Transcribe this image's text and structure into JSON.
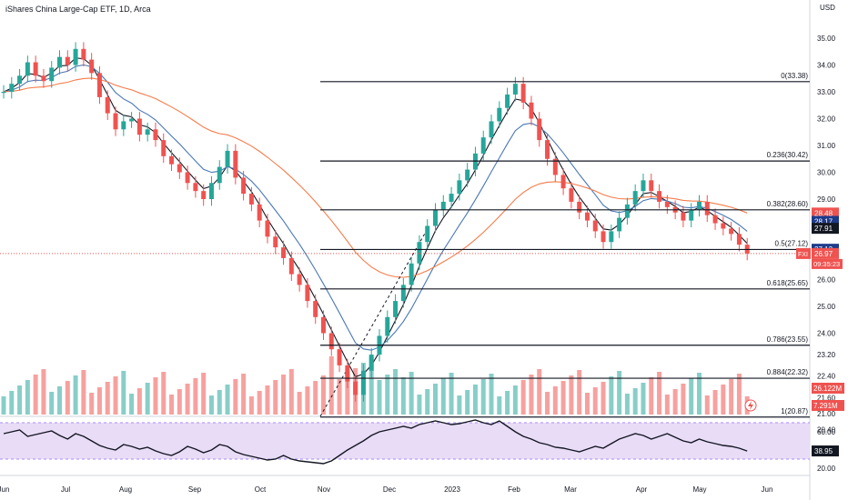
{
  "header": {
    "title": "iShares China Large-Cap ETF, 1D, Arca",
    "currency": "USD"
  },
  "colors": {
    "up": "#26a69a",
    "down": "#ef5350",
    "ema_fast": "#131722",
    "ema_mid": "#4a78b5",
    "ema_slow": "#f57c4a",
    "rsi": "#131722",
    "rsi_band": "#e9dcf7"
  },
  "chart_data": {
    "type": "candlestick",
    "symbol": "FXI",
    "x_ticks": [
      "Jun",
      "Jul",
      "Aug",
      "Sep",
      "Oct",
      "Nov",
      "Dec",
      "2023",
      "Feb",
      "Mar",
      "Apr",
      "May",
      "Jun"
    ],
    "y_ticks": [
      "35.00",
      "34.00",
      "33.00",
      "32.00",
      "31.00",
      "30.00",
      "29.00",
      "28.00",
      "27.00",
      "26.00",
      "25.00",
      "24.00",
      "23.20",
      "22.40",
      "21.60",
      "21.00",
      "20.40"
    ],
    "rsi_ticks": [
      "60.00",
      "40.00",
      "20.00"
    ],
    "fib_levels": [
      {
        "label": "0(33.38)",
        "value": 33.38
      },
      {
        "label": "0.236(30.42)",
        "value": 30.42
      },
      {
        "label": "0.382(28.60)",
        "value": 28.6
      },
      {
        "label": "0.5(27.12)",
        "value": 27.12
      },
      {
        "label": "0.618(25.65)",
        "value": 25.65
      },
      {
        "label": "0.786(23.55)",
        "value": 23.55
      },
      {
        "label": "0.884(22.32)",
        "value": 22.32
      },
      {
        "label": "1(20.87)",
        "value": 20.87
      }
    ],
    "price_tags": [
      {
        "text": "28.48",
        "value": 28.48,
        "color": "#ef5350"
      },
      {
        "text": "28.17",
        "value": 28.17,
        "color": "#1e3a8a"
      },
      {
        "text": "27.91",
        "value": 27.91,
        "color": "#131722"
      },
      {
        "text": "27.13",
        "value": 27.13,
        "color": "#1e3a8a"
      },
      {
        "text": "26.97",
        "value": 26.97,
        "color": "#ef5350"
      }
    ],
    "last_symbol": "FXI",
    "countdown": "09:35:23",
    "volume_tags": [
      {
        "text": "26.122M",
        "color": "#ef5350"
      },
      {
        "text": "7.291M",
        "color": "#ef5350"
      }
    ],
    "rsi_value": "38.95",
    "close_series": [
      33.0,
      33.3,
      33.6,
      34.1,
      33.6,
      33.4,
      33.9,
      34.3,
      34.0,
      34.6,
      34.2,
      33.7,
      32.8,
      32.2,
      31.6,
      31.9,
      32.0,
      31.4,
      31.6,
      31.2,
      30.6,
      30.3,
      30.0,
      29.6,
      29.3,
      29.0,
      29.6,
      30.2,
      30.8,
      29.8,
      29.2,
      28.8,
      28.2,
      27.6,
      27.2,
      26.8,
      26.2,
      25.8,
      25.2,
      24.6,
      24.0,
      23.4,
      22.8,
      22.2,
      21.7,
      22.6,
      23.2,
      23.9,
      24.6,
      25.2,
      25.8,
      26.6,
      27.4,
      28.0,
      28.6,
      28.9,
      29.2,
      29.7,
      30.1,
      30.7,
      31.3,
      31.9,
      32.4,
      32.9,
      33.3,
      32.6,
      32.0,
      31.2,
      30.5,
      29.9,
      29.4,
      28.9,
      28.5,
      28.2,
      27.8,
      27.4,
      27.8,
      28.3,
      28.8,
      29.3,
      29.7,
      29.3,
      28.9,
      28.7,
      28.5,
      28.2,
      28.6,
      28.9,
      28.4,
      28.1,
      27.9,
      27.7,
      27.3,
      26.97
    ],
    "rsi_series": [
      58,
      60,
      62,
      55,
      57,
      59,
      61,
      56,
      52,
      58,
      55,
      50,
      45,
      42,
      40,
      46,
      44,
      41,
      43,
      39,
      36,
      34,
      38,
      44,
      41,
      37,
      40,
      46,
      44,
      38,
      35,
      33,
      31,
      29,
      30,
      34,
      30,
      28,
      27,
      26,
      25,
      28,
      34,
      40,
      45,
      50,
      56,
      60,
      62,
      64,
      66,
      64,
      68,
      70,
      72,
      70,
      68,
      69,
      71,
      73,
      70,
      68,
      72,
      66,
      60,
      55,
      52,
      48,
      46,
      43,
      42,
      40,
      38,
      41,
      44,
      42,
      47,
      52,
      55,
      58,
      56,
      52,
      55,
      58,
      54,
      50,
      48,
      52,
      49,
      47,
      45,
      44,
      42,
      38.95
    ]
  }
}
